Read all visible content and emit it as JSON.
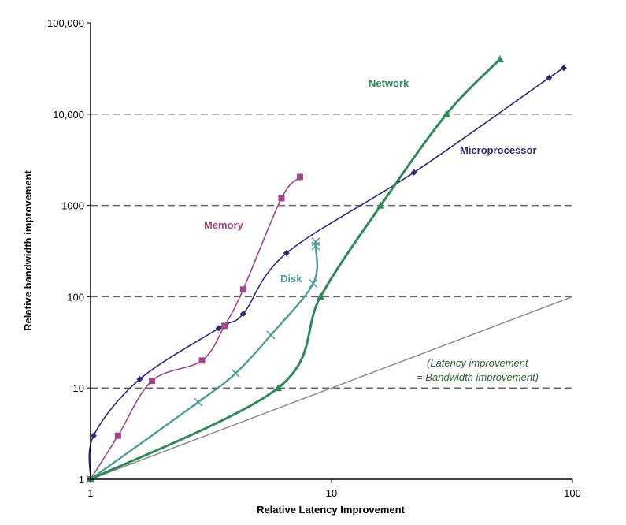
{
  "chart_data": {
    "type": "line",
    "xlabel": "Relative Latency Improvement",
    "ylabel": "Relative bandwidth improvement",
    "xscale": "log",
    "yscale": "log",
    "xlim": [
      1,
      100
    ],
    "ylim": [
      1,
      100000
    ],
    "x_ticks": [
      {
        "value": 1,
        "label": "1"
      },
      {
        "value": 10,
        "label": "10"
      },
      {
        "value": 100,
        "label": "100"
      }
    ],
    "y_ticks": [
      {
        "value": 1,
        "label": "1"
      },
      {
        "value": 10,
        "label": "10"
      },
      {
        "value": 100,
        "label": "100"
      },
      {
        "value": 1000,
        "label": "1000"
      },
      {
        "value": 10000,
        "label": "10,000"
      },
      {
        "value": 100000,
        "label": "100,000"
      }
    ],
    "grid": "horizontal dashed at 10, 100, 1000, 10000",
    "series": [
      {
        "name": "Microprocessor",
        "color": "#2a2a7a",
        "marker": "diamond",
        "points": [
          [
            1,
            1
          ],
          [
            1.03,
            3
          ],
          [
            1.6,
            12.5
          ],
          [
            3.4,
            45
          ],
          [
            4.3,
            65
          ],
          [
            6.5,
            300
          ],
          [
            22,
            2300
          ],
          [
            80,
            25000
          ],
          [
            92,
            32000
          ]
        ]
      },
      {
        "name": "Memory",
        "color": "#a3438b",
        "marker": "square",
        "points": [
          [
            1,
            1
          ],
          [
            1.3,
            3
          ],
          [
            1.8,
            12
          ],
          [
            2.9,
            20
          ],
          [
            3.6,
            48
          ],
          [
            4.3,
            120
          ],
          [
            6.2,
            1200
          ],
          [
            7.4,
            2050
          ]
        ]
      },
      {
        "name": "Disk",
        "color": "#4a9d9b",
        "marker": "x",
        "points": [
          [
            1,
            1
          ],
          [
            2.8,
            7
          ],
          [
            4,
            14.5
          ],
          [
            5.6,
            38
          ],
          [
            8.4,
            140
          ],
          [
            8.6,
            360
          ],
          [
            8.6,
            400
          ]
        ]
      },
      {
        "name": "Network",
        "color": "#2e8b57",
        "marker": "triangle",
        "points": [
          [
            1,
            1
          ],
          [
            6,
            10
          ],
          [
            9,
            100
          ],
          [
            16,
            1000
          ],
          [
            30,
            10000
          ],
          [
            50,
            40000
          ]
        ]
      }
    ],
    "reference_line": {
      "label_line1": "(Latency improvement",
      "label_line2": "= Bandwidth improvement)",
      "color": "#8c8c8c",
      "points": [
        [
          1,
          1
        ],
        [
          100,
          100
        ]
      ]
    }
  }
}
